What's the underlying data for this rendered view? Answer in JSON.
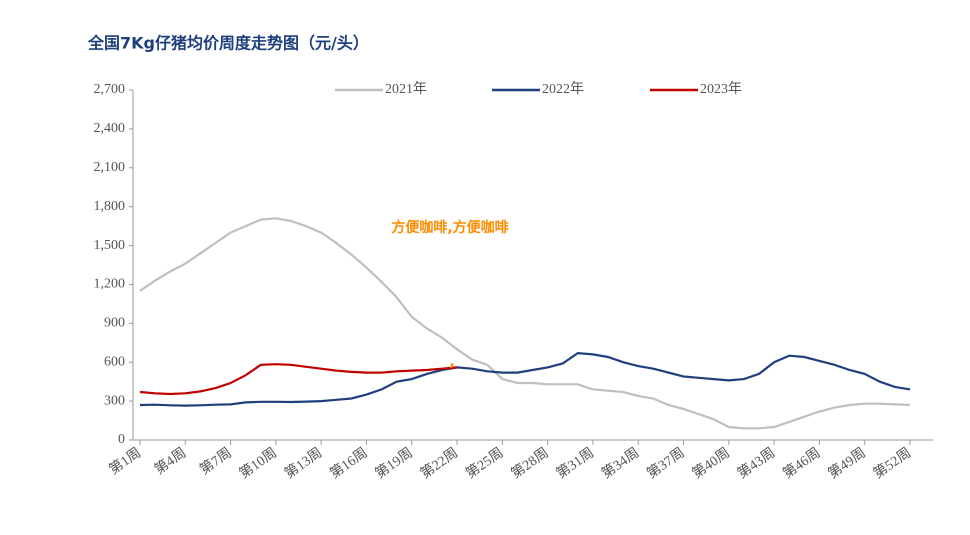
{
  "chart_data": {
    "type": "line",
    "title": "全国7Kg仔猪均价周度走势图（元/头）",
    "categories": [
      "第1周",
      null,
      null,
      "第4周",
      null,
      null,
      "第7周",
      null,
      null,
      "第10周",
      null,
      null,
      "第13周",
      null,
      null,
      "第16周",
      null,
      null,
      "第19周",
      null,
      null,
      "第22周",
      null,
      null,
      "第25周",
      null,
      null,
      "第28周",
      null,
      null,
      "第31周",
      null,
      null,
      "第34周",
      null,
      null,
      "第37周",
      null,
      null,
      "第40周",
      null,
      null,
      "第43周",
      null,
      null,
      "第46周",
      null,
      null,
      "第49周",
      null,
      null,
      "第52周"
    ],
    "series": [
      {
        "name": "2021年",
        "color": "#bfbfbf",
        "values": [
          1150,
          1230,
          1300,
          1360,
          1440,
          1520,
          1600,
          1650,
          1700,
          1710,
          1690,
          1650,
          1600,
          1520,
          1430,
          1330,
          1220,
          1100,
          950,
          860,
          790,
          700,
          620,
          580,
          470,
          440,
          440,
          430,
          430,
          430,
          390,
          380,
          370,
          340,
          320,
          270,
          240,
          200,
          160,
          100,
          90,
          90,
          100,
          140,
          180,
          220,
          250,
          270,
          280,
          280,
          275,
          270
        ]
      },
      {
        "name": "2022年",
        "color": "#1f3f7f",
        "values": [
          270,
          272,
          268,
          265,
          268,
          272,
          275,
          290,
          295,
          295,
          293,
          296,
          300,
          310,
          320,
          350,
          390,
          450,
          470,
          510,
          540,
          560,
          550,
          530,
          520,
          520,
          540,
          560,
          590,
          670,
          660,
          640,
          600,
          570,
          550,
          520,
          490,
          480,
          470,
          460,
          470,
          510,
          600,
          650,
          640,
          610,
          580,
          540,
          510,
          450,
          410,
          390
        ]
      },
      {
        "name": "2023年",
        "color": "#c00000",
        "values": [
          370,
          360,
          355,
          360,
          375,
          400,
          440,
          500,
          580,
          585,
          580,
          565,
          550,
          535,
          525,
          520,
          520,
          530,
          535,
          540,
          550,
          560,
          null,
          null,
          null,
          null,
          null,
          null,
          null,
          null,
          null,
          null,
          null,
          null,
          null,
          null,
          null,
          null,
          null,
          null,
          null,
          null,
          null,
          null,
          null,
          null,
          null,
          null,
          null,
          null,
          null,
          null
        ]
      }
    ],
    "ylim": [
      0,
      2700
    ],
    "yticks": [
      0,
      300,
      600,
      900,
      {
        "value": 1200,
        "label": "1,200"
      },
      {
        "value": 1500,
        "label": "1,500"
      },
      {
        "value": 1800,
        "label": "1,800"
      },
      {
        "value": 2100,
        "label": "2,100"
      },
      {
        "value": 2400,
        "label": "2,400"
      },
      {
        "value": 2700,
        "label": "2,700"
      }
    ],
    "legend": "top",
    "annotations": [
      "方便咖啡,方便咖啡",
      ","
    ]
  }
}
